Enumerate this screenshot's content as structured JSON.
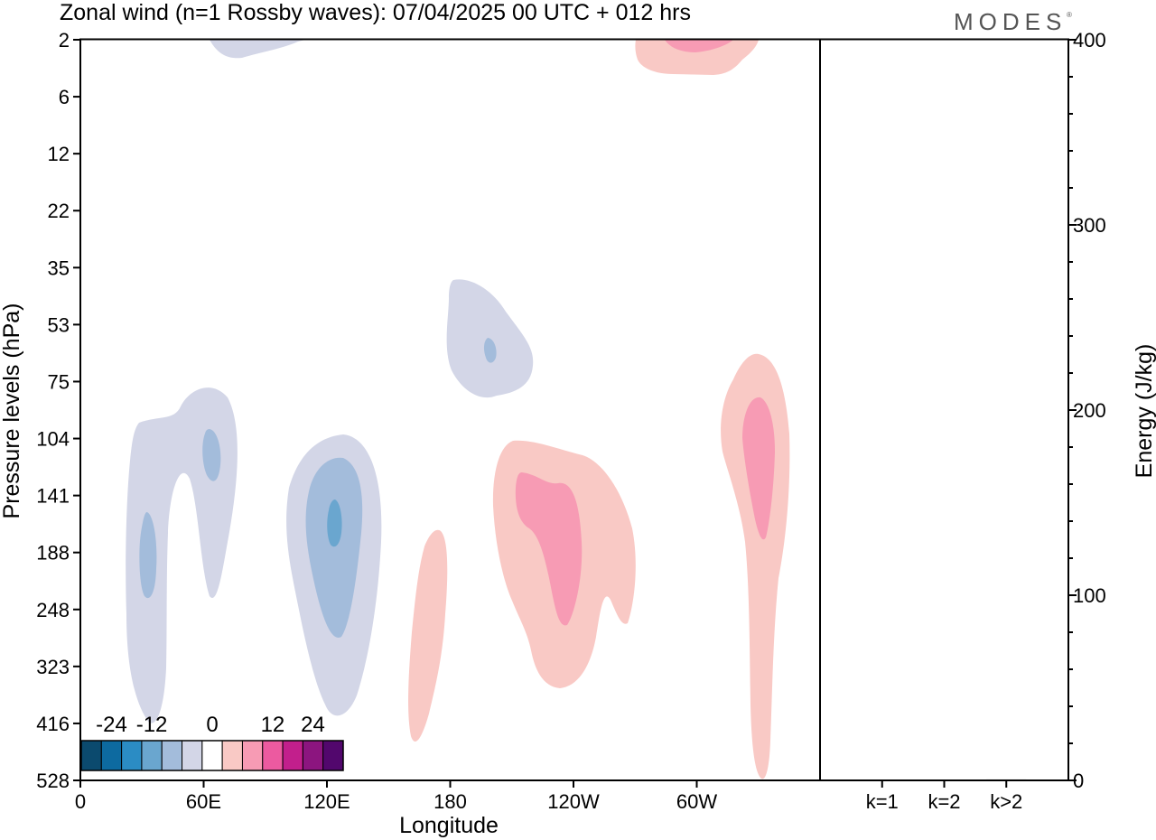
{
  "chart_data": {
    "type": "heatmap",
    "title": "Zonal wind (n=1 Rossby waves):  07/04/2025  00 UTC  + 012 hrs",
    "logo": "MODES",
    "logo_mark": "®",
    "xlabel": "Longitude",
    "ylabel": "Pressure levels (hPa)",
    "ylabel_right": "Energy (J/kg)",
    "x_ticks": [
      "0",
      "60E",
      "120E",
      "180",
      "120W",
      "60W"
    ],
    "x_tick_values": [
      0,
      60,
      120,
      180,
      240,
      300
    ],
    "xlim": [
      0,
      360
    ],
    "y_ticks": [
      "2",
      "6",
      "12",
      "22",
      "35",
      "53",
      "75",
      "104",
      "141",
      "188",
      "248",
      "323",
      "416",
      "528"
    ],
    "y_ticks_right": [
      "0",
      "100",
      "200",
      "300",
      "400"
    ],
    "y_right_values": [
      0,
      100,
      200,
      300,
      400
    ],
    "ylim_right": [
      0,
      400
    ],
    "energy_categories": [
      "k=1",
      "k=2",
      "k>2"
    ],
    "energy_values": [
      0,
      0,
      0.5
    ],
    "colorbar": {
      "tick_labels": [
        "-24",
        "-12",
        "0",
        "12",
        "24"
      ],
      "levels": [
        -30,
        -25,
        -20,
        -15,
        -10,
        -5,
        0,
        5,
        10,
        15,
        20,
        25,
        30
      ],
      "colors": [
        "#0b4a6e",
        "#0d6aa0",
        "#2b8cc4",
        "#6aa6cf",
        "#a3bcdb",
        "#d3d6e7",
        "#ffffff",
        "#f9c9c5",
        "#f79bb4",
        "#ec5aa0",
        "#c21f8c",
        "#8c157f",
        "#52076d"
      ]
    },
    "fields": [
      {
        "sign": "negative",
        "level": -5,
        "lon": [
          70,
          85
        ],
        "plev": [
          2,
          3
        ]
      },
      {
        "sign": "negative",
        "level": -5,
        "lon": [
          18,
          53
        ],
        "plev": [
          75,
          430
        ]
      },
      {
        "sign": "negative",
        "level": -10,
        "lon": [
          29,
          38
        ],
        "plev": [
          140,
          230
        ]
      },
      {
        "sign": "negative",
        "level": -10,
        "lon": [
          60,
          68
        ],
        "plev": [
          100,
          150
        ]
      },
      {
        "sign": "negative",
        "level": -5,
        "lon": [
          105,
          148
        ],
        "plev": [
          98,
          430
        ]
      },
      {
        "sign": "negative",
        "level": -10,
        "lon": [
          110,
          138
        ],
        "plev": [
          113,
          300
        ]
      },
      {
        "sign": "negative",
        "level": -15,
        "lon": [
          120,
          127
        ],
        "plev": [
          140,
          180
        ]
      },
      {
        "sign": "negative",
        "level": -5,
        "lon": [
          180,
          221
        ],
        "plev": [
          38,
          90
        ]
      },
      {
        "sign": "negative",
        "level": -10,
        "lon": [
          198,
          204
        ],
        "plev": [
          55,
          65
        ]
      },
      {
        "sign": "positive",
        "level": 5,
        "lon": [
          278,
          322
        ],
        "plev": [
          2,
          3
        ]
      },
      {
        "sign": "positive",
        "level": 10,
        "lon": [
          285,
          310
        ],
        "plev": [
          2,
          2.2
        ]
      },
      {
        "sign": "positive",
        "level": 5,
        "lon": [
          160,
          180
        ],
        "plev": [
          200,
          450
        ]
      },
      {
        "sign": "positive",
        "level": 5,
        "lon": [
          200,
          260
        ],
        "plev": [
          104,
          360
        ]
      },
      {
        "sign": "positive",
        "level": 10,
        "lon": [
          210,
          237
        ],
        "plev": [
          120,
          260
        ]
      },
      {
        "sign": "positive",
        "level": 5,
        "lon": [
          310,
          345
        ],
        "plev": [
          72,
          528
        ]
      },
      {
        "sign": "positive",
        "level": 10,
        "lon": [
          322,
          338
        ],
        "plev": [
          88,
          210
        ]
      }
    ]
  }
}
